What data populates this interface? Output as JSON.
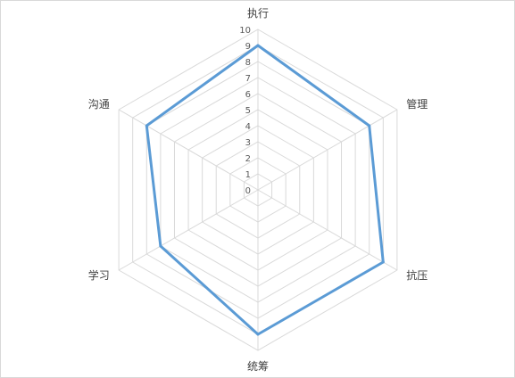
{
  "chart_data": {
    "type": "radar",
    "categories": [
      "执行",
      "管理",
      "抗压",
      "统筹",
      "学习",
      "沟通"
    ],
    "series": [
      {
        "values": [
          9,
          8,
          9,
          9,
          7,
          8
        ]
      }
    ],
    "rmin": 0,
    "rmax": 10,
    "ticks": [
      "0",
      "1",
      "2",
      "3",
      "4",
      "5",
      "6",
      "7",
      "8",
      "9",
      "10"
    ],
    "grid": true,
    "legend": "none",
    "colors": {
      "series": "#5b9bd5",
      "grid": "#d9d9d9",
      "border": "#d9d9d9"
    }
  }
}
